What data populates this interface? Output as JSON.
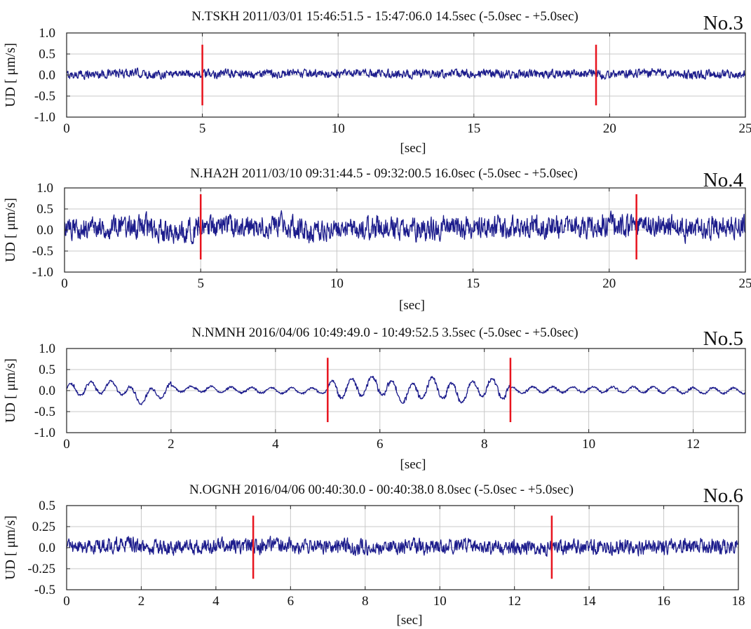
{
  "colors": {
    "trace": "#1c1c8c",
    "marker": "#e8141e",
    "grid": "#c8c8c8",
    "frame": "#222222",
    "text": "#111111"
  },
  "chart_data": [
    {
      "type": "line",
      "panel_label": "No.3",
      "title": "N.TSKH 2011/03/01 15:46:51.5 - 15:47:06.0 14.5sec (-5.0sec - +5.0sec)",
      "xlabel": "[sec]",
      "ylabel": "UD [ μm/s]",
      "xlim": [
        0,
        25
      ],
      "ylim": [
        -1.0,
        1.0
      ],
      "xticks": [
        0,
        5,
        10,
        15,
        20,
        25
      ],
      "yticks": [
        1.0,
        0.5,
        0.0,
        -0.5,
        -1.0
      ],
      "ytick_labels": [
        "1.0",
        "0.5",
        "0.0",
        "-0.5",
        "-1.0"
      ],
      "grid": true,
      "markers": [
        5.0,
        19.5
      ],
      "marker_span": [
        -0.72,
        0.72
      ],
      "series": [
        {
          "x": [
            0,
            1,
            2,
            2.5,
            3,
            3.5,
            4,
            5,
            6,
            7,
            8,
            9,
            10,
            11,
            12,
            13,
            14,
            15,
            16,
            17,
            18,
            19,
            19.5,
            20,
            21,
            22,
            23,
            24,
            25
          ],
          "values": [
            0.0,
            0.05,
            0.08,
            0.12,
            0.02,
            0.05,
            0.1,
            0.05,
            0.08,
            0.05,
            0.07,
            0.05,
            0.05,
            0.1,
            0.05,
            0.05,
            0.05,
            0.08,
            0.05,
            0.05,
            0.05,
            0.08,
            0.05,
            0.02,
            0.1,
            0.12,
            0.02,
            0.05,
            0.02
          ]
        }
      ]
    },
    {
      "type": "line",
      "panel_label": "No.4",
      "title": "N.HA2H 2011/03/10 09:31:44.5 - 09:32:00.5 16.0sec (-5.0sec - +5.0sec)",
      "xlabel": "[sec]",
      "ylabel": "UD [ μm/s]",
      "xlim": [
        0,
        25
      ],
      "ylim": [
        -1.0,
        1.0
      ],
      "xticks": [
        0,
        5,
        10,
        15,
        20,
        25
      ],
      "yticks": [
        1.0,
        0.5,
        0.0,
        -0.5,
        -1.0
      ],
      "ytick_labels": [
        "1.0",
        "0.5",
        "0.0",
        "-0.5",
        "-1.0"
      ],
      "grid": true,
      "markers": [
        5.0,
        21.0
      ],
      "marker_span": [
        -0.7,
        0.85
      ],
      "series": [
        {
          "x": [
            0,
            1,
            2,
            3,
            4,
            5,
            6,
            7,
            8,
            9,
            10,
            11,
            12,
            13,
            14,
            15,
            16,
            17,
            18,
            19,
            20,
            21,
            22,
            23,
            24,
            25
          ],
          "values": [
            0.0,
            0.2,
            0.15,
            0.2,
            -0.2,
            0.1,
            0.15,
            0.2,
            0.3,
            -0.1,
            0.1,
            0.1,
            0.15,
            0.0,
            0.15,
            0.1,
            0.2,
            0.15,
            0.2,
            0.05,
            0.3,
            0.1,
            0.2,
            0.0,
            0.15,
            0.25
          ]
        }
      ]
    },
    {
      "type": "line",
      "panel_label": "No.5",
      "title": "N.NMNH 2016/04/06 10:49:49.0 - 10:49:52.5  3.5sec (-5.0sec - +5.0sec)",
      "xlabel": "[sec]",
      "ylabel": "UD [ μm/s]",
      "xlim": [
        0,
        13
      ],
      "ylim": [
        -1.0,
        1.0
      ],
      "xticks": [
        0,
        2,
        4,
        6,
        8,
        10,
        12
      ],
      "yticks": [
        1.0,
        0.5,
        0.0,
        -0.5,
        -1.0
      ],
      "ytick_labels": [
        "1.0",
        "0.5",
        "0.0",
        "-0.5",
        "-1.0"
      ],
      "grid": true,
      "markers": [
        5.0,
        8.5
      ],
      "marker_span": [
        -0.75,
        0.78
      ],
      "series": [
        {
          "x": [
            0,
            0.5,
            1,
            1.4,
            2,
            3,
            4,
            5,
            5.5,
            6,
            6.5,
            7,
            7.5,
            8,
            8.5,
            9,
            10,
            11,
            12,
            13
          ],
          "values": [
            0.0,
            0.15,
            0.2,
            -0.4,
            0.1,
            0.05,
            0.0,
            0.0,
            0.15,
            0.3,
            -0.25,
            0.25,
            -0.2,
            0.2,
            0.0,
            0.05,
            0.05,
            0.05,
            0.0,
            0.0
          ]
        }
      ]
    },
    {
      "type": "line",
      "panel_label": "No.6",
      "title": "N.OGNH 2016/04/06 00:40:30.0 - 00:40:38.0  8.0sec (-5.0sec - +5.0sec)",
      "xlabel": "[sec]",
      "ylabel": "UD [ μm/s]",
      "xlim": [
        0,
        18
      ],
      "ylim": [
        -0.5,
        0.5
      ],
      "xticks": [
        0,
        2,
        4,
        6,
        8,
        10,
        12,
        14,
        16,
        18
      ],
      "yticks": [
        0.5,
        0.25,
        0.0,
        -0.25,
        -0.5
      ],
      "ytick_labels": [
        "0.5",
        "0.25",
        "0.0",
        "-0.25",
        "-0.5"
      ],
      "grid": true,
      "markers": [
        5.0,
        13.0
      ],
      "marker_span": [
        -0.37,
        0.38
      ],
      "series": [
        {
          "x": [
            0,
            1,
            1.7,
            2,
            3,
            4,
            5,
            5.7,
            6,
            7,
            8,
            9,
            10,
            11,
            12,
            13,
            14,
            15,
            16,
            17,
            18
          ],
          "values": [
            0.0,
            0.05,
            0.1,
            0.0,
            0.02,
            0.05,
            0.0,
            0.1,
            0.05,
            0.05,
            0.0,
            0.02,
            0.05,
            0.05,
            0.02,
            0.0,
            0.02,
            0.0,
            0.02,
            0.05,
            0.02
          ]
        }
      ]
    }
  ]
}
